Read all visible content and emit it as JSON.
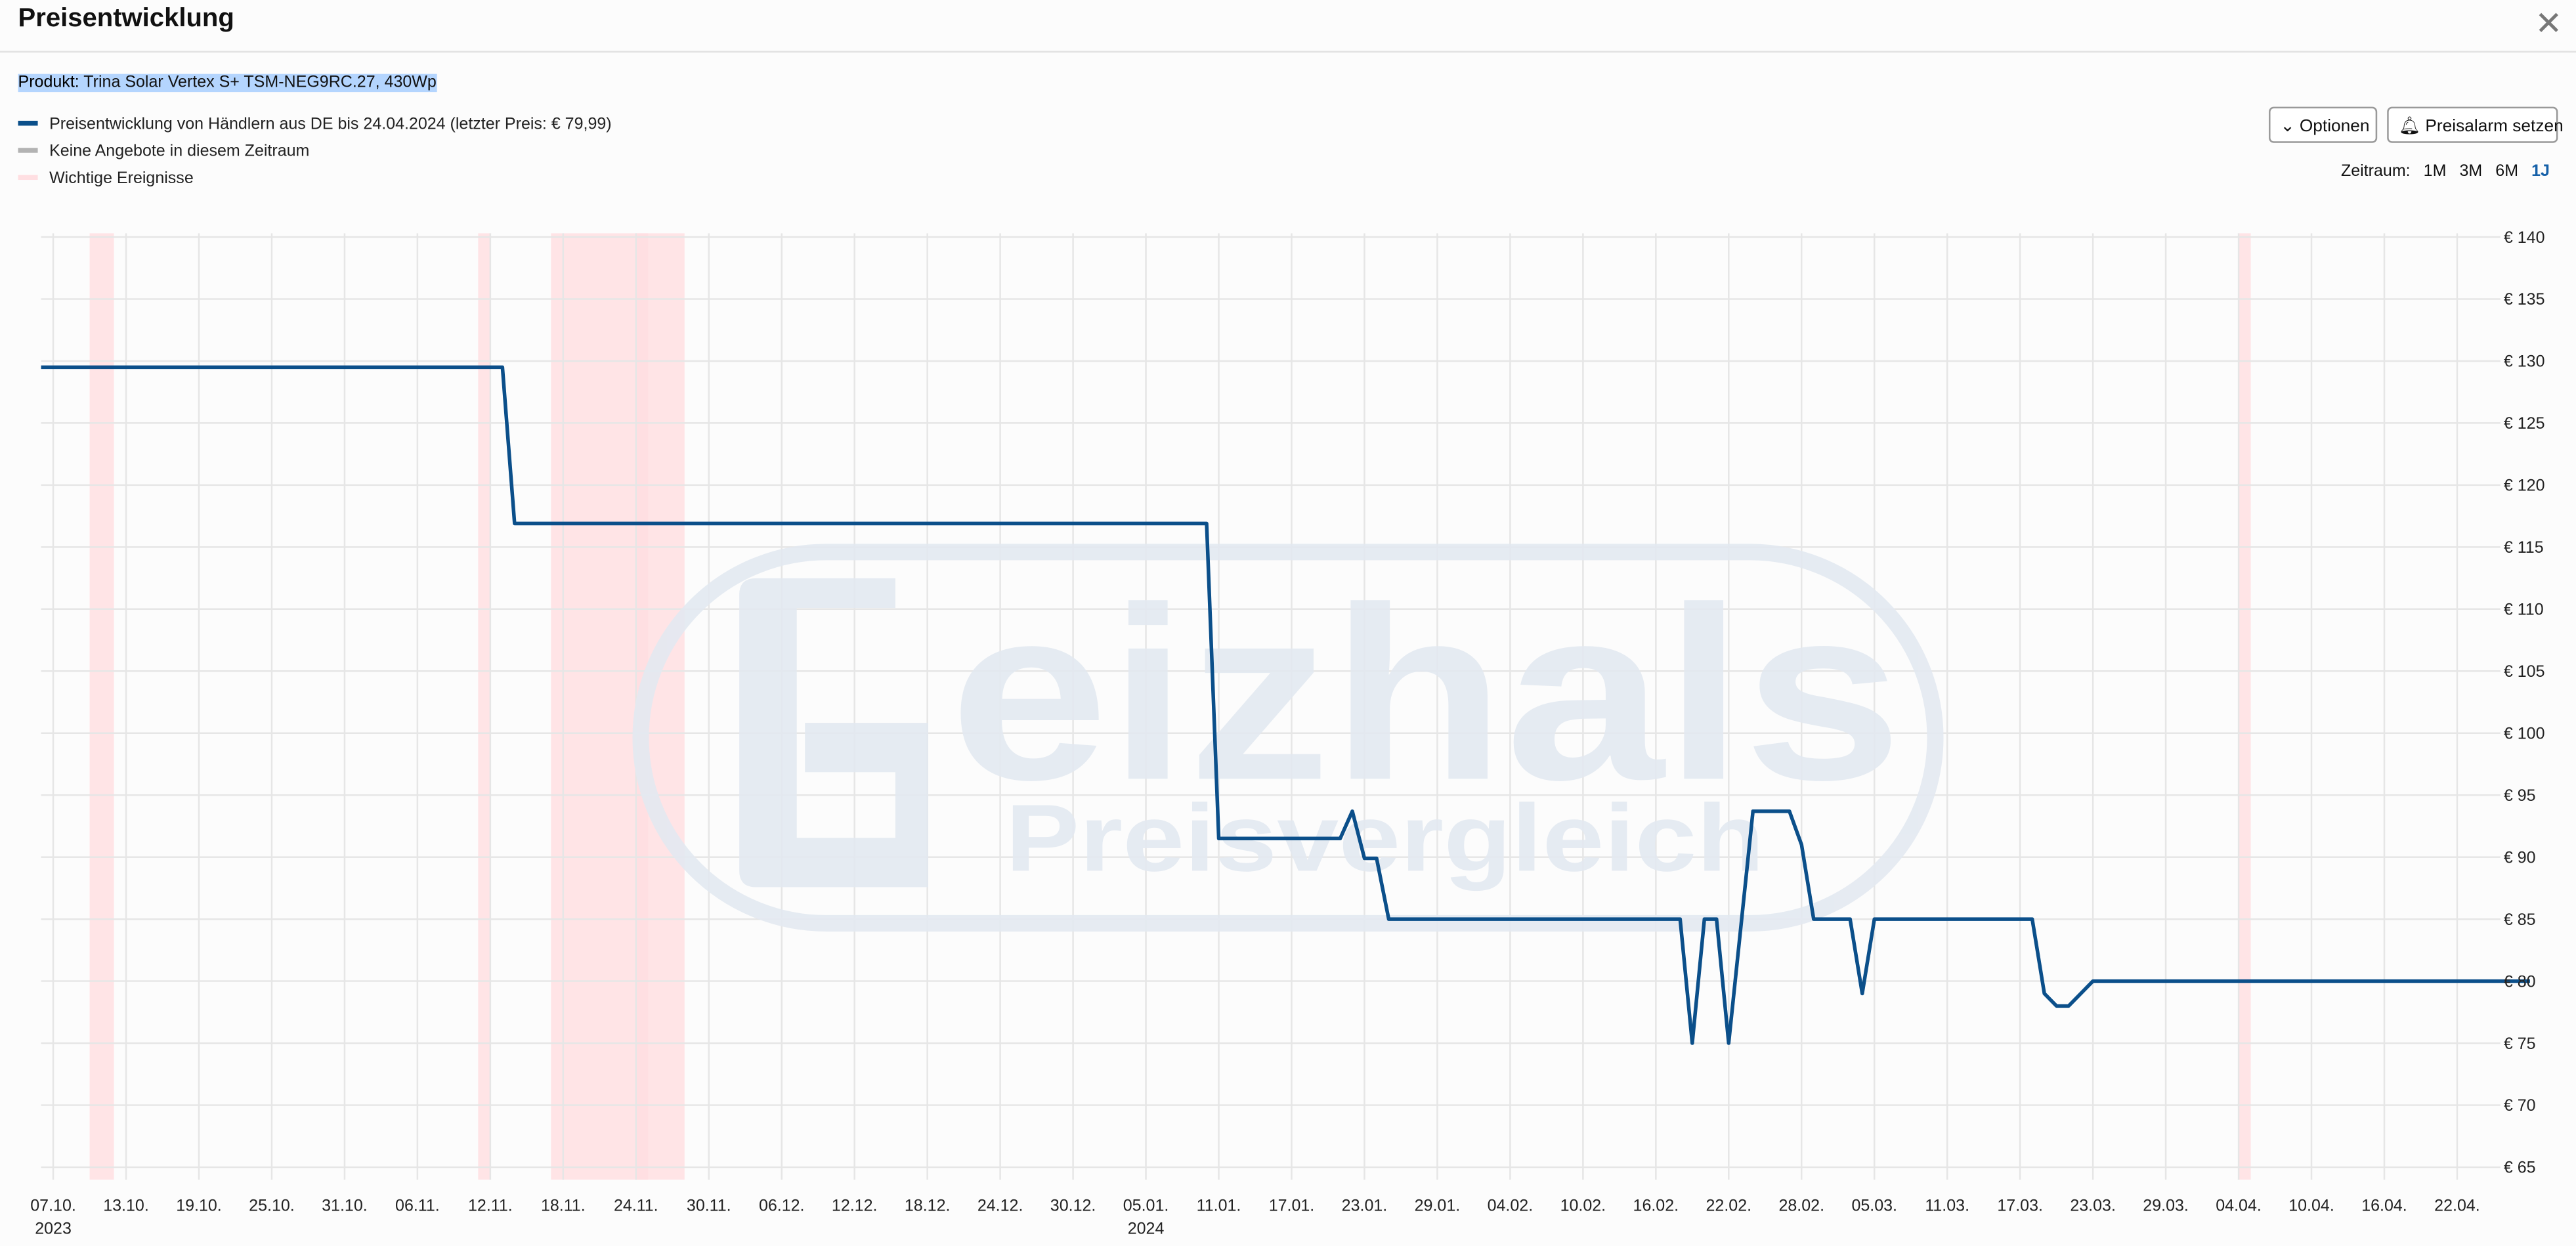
{
  "header": {
    "title": "Preisentwicklung"
  },
  "product": {
    "label": "Produkt:",
    "name": "Trina Solar Vertex S+ TSM-NEG9RC.27, 430Wp"
  },
  "controls": {
    "options": "Optionen",
    "alarm": "Preisalarm setzen",
    "range_label": "Zeitraum:",
    "ranges": [
      "1M",
      "3M",
      "6M",
      "1J"
    ],
    "active_range": 3
  },
  "chart_data": {
    "type": "line",
    "watermark": {
      "text": "eizhals",
      "subtext": "Preisvergleich"
    },
    "x": [
      "2023-10-06",
      "2023-11-13",
      "2023-11-14",
      "2024-01-10",
      "2024-01-11",
      "2024-01-21",
      "2024-01-22",
      "2024-01-23",
      "2024-01-24",
      "2024-01-25",
      "2024-02-18",
      "2024-02-19",
      "2024-02-20",
      "2024-02-21",
      "2024-02-22",
      "2024-02-24",
      "2024-02-27",
      "2024-02-28",
      "2024-02-29",
      "2024-03-03",
      "2024-03-04",
      "2024-03-05",
      "2024-03-18",
      "2024-03-19",
      "2024-03-20",
      "2024-03-21",
      "2024-03-23",
      "2024-04-28"
    ],
    "series": [
      {
        "name": "Preisentwicklung von Händlern aus DE bis 24.04.2024 (letzter Preis: € 79,99)",
        "color": "#0b4f8a",
        "values": [
          129.5,
          129.5,
          116.9,
          116.9,
          91.5,
          91.5,
          93.7,
          89.9,
          89.9,
          85,
          85,
          75,
          85,
          85,
          75,
          93.7,
          93.7,
          91,
          85,
          85,
          79,
          85,
          85,
          79,
          78,
          78,
          80,
          80
        ]
      }
    ],
    "no_offers": {
      "name": "Keine Angebote in diesem Zeitraum",
      "color": "#b3b3b3"
    },
    "events": {
      "name": "Wichtige Ereignisse",
      "color": "#ffdfe2",
      "ranges": [
        {
          "start": "2023-10-10",
          "end": "2023-10-12"
        },
        {
          "start": "2023-11-11",
          "end": "2023-11-12"
        },
        {
          "start": "2023-11-17",
          "end": "2023-11-25"
        },
        {
          "start": "2023-11-24",
          "end": "2023-11-28"
        },
        {
          "start": "2024-04-04",
          "end": "2024-04-05"
        }
      ]
    },
    "xlim": [
      "2023-10-06",
      "2024-04-28"
    ],
    "xticks": [
      {
        "value": "2023-10-07",
        "label": "07.10."
      },
      {
        "value": "2023-10-13",
        "label": "13.10."
      },
      {
        "value": "2023-10-19",
        "label": "19.10."
      },
      {
        "value": "2023-10-25",
        "label": "25.10."
      },
      {
        "value": "2023-10-31",
        "label": "31.10."
      },
      {
        "value": "2023-11-06",
        "label": "06.11."
      },
      {
        "value": "2023-11-12",
        "label": "12.11."
      },
      {
        "value": "2023-11-18",
        "label": "18.11."
      },
      {
        "value": "2023-11-24",
        "label": "24.11."
      },
      {
        "value": "2023-11-30",
        "label": "30.11."
      },
      {
        "value": "2023-12-06",
        "label": "06.12."
      },
      {
        "value": "2023-12-12",
        "label": "12.12."
      },
      {
        "value": "2023-12-18",
        "label": "18.12."
      },
      {
        "value": "2023-12-24",
        "label": "24.12."
      },
      {
        "value": "2023-12-30",
        "label": "30.12."
      },
      {
        "value": "2024-01-05",
        "label": "05.01."
      },
      {
        "value": "2024-01-11",
        "label": "11.01."
      },
      {
        "value": "2024-01-17",
        "label": "17.01."
      },
      {
        "value": "2024-01-23",
        "label": "23.01."
      },
      {
        "value": "2024-01-29",
        "label": "29.01."
      },
      {
        "value": "2024-02-04",
        "label": "04.02."
      },
      {
        "value": "2024-02-10",
        "label": "10.02."
      },
      {
        "value": "2024-02-16",
        "label": "16.02."
      },
      {
        "value": "2024-02-22",
        "label": "22.02."
      },
      {
        "value": "2024-02-28",
        "label": "28.02."
      },
      {
        "value": "2024-03-05",
        "label": "05.03."
      },
      {
        "value": "2024-03-11",
        "label": "11.03."
      },
      {
        "value": "2024-03-17",
        "label": "17.03."
      },
      {
        "value": "2024-03-23",
        "label": "23.03."
      },
      {
        "value": "2024-03-29",
        "label": "29.03."
      },
      {
        "value": "2024-04-04",
        "label": "04.04."
      },
      {
        "value": "2024-04-10",
        "label": "10.04."
      },
      {
        "value": "2024-04-16",
        "label": "16.04."
      },
      {
        "value": "2024-04-22",
        "label": "22.04."
      }
    ],
    "year_labels": [
      {
        "value": "2023-10-07",
        "label": "2023"
      },
      {
        "value": "2024-01-05",
        "label": "2024"
      }
    ],
    "ylim": [
      64,
      140.3
    ],
    "yticks": [
      {
        "value": 65,
        "label": "€ 65"
      },
      {
        "value": 70,
        "label": "€ 70"
      },
      {
        "value": 75,
        "label": "€ 75"
      },
      {
        "value": 80,
        "label": "€ 80"
      },
      {
        "value": 85,
        "label": "€ 85"
      },
      {
        "value": 90,
        "label": "€ 90"
      },
      {
        "value": 95,
        "label": "€ 95"
      },
      {
        "value": 100,
        "label": "€ 100"
      },
      {
        "value": 105,
        "label": "€ 105"
      },
      {
        "value": 110,
        "label": "€ 110"
      },
      {
        "value": 115,
        "label": "€ 115"
      },
      {
        "value": 120,
        "label": "€ 120"
      },
      {
        "value": 125,
        "label": "€ 125"
      },
      {
        "value": 130,
        "label": "€ 130"
      },
      {
        "value": 135,
        "label": "€ 135"
      },
      {
        "value": 140,
        "label": "€ 140"
      }
    ],
    "grid": true
  }
}
